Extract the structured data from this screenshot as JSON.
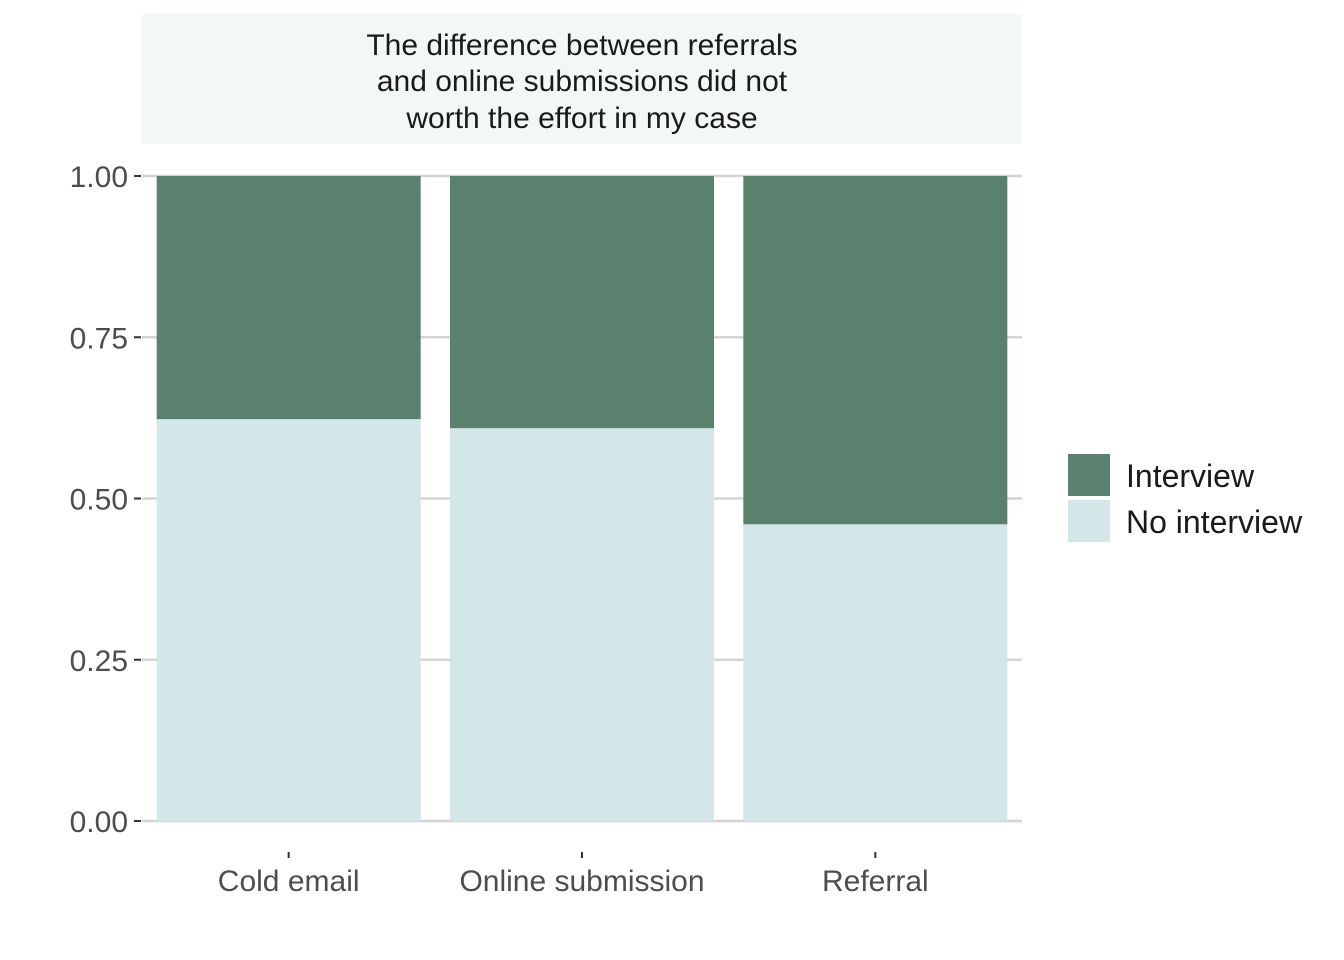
{
  "chart_data": {
    "type": "bar",
    "stacked": "proportional",
    "facet_title": [
      "The difference between referrals",
      "and online submissions did not",
      "worth the effort in my case"
    ],
    "categories": [
      "Cold email",
      "Online submission",
      "Referral"
    ],
    "series": [
      {
        "name": "No interview",
        "color": "#d3e7e8",
        "values": [
          0.623,
          0.609,
          0.46
        ]
      },
      {
        "name": "Interview",
        "color": "#5a806e",
        "values": [
          0.377,
          0.391,
          0.54
        ]
      }
    ],
    "ylim": [
      0,
      1
    ],
    "yticks": [
      0,
      0.25,
      0.5,
      0.75,
      1
    ],
    "ytick_labels": [
      "0.00",
      "0.25",
      "0.50",
      "0.75",
      "1.00"
    ],
    "xlabel": "",
    "ylabel": "",
    "legend": {
      "position": "right",
      "items": [
        {
          "label": "Interview",
          "color": "#5a806e"
        },
        {
          "label": "No interview",
          "color": "#d3e7e8"
        }
      ]
    },
    "colors": {
      "strip_background": "#f3f8f7",
      "grid": "#d4d4d4"
    }
  }
}
